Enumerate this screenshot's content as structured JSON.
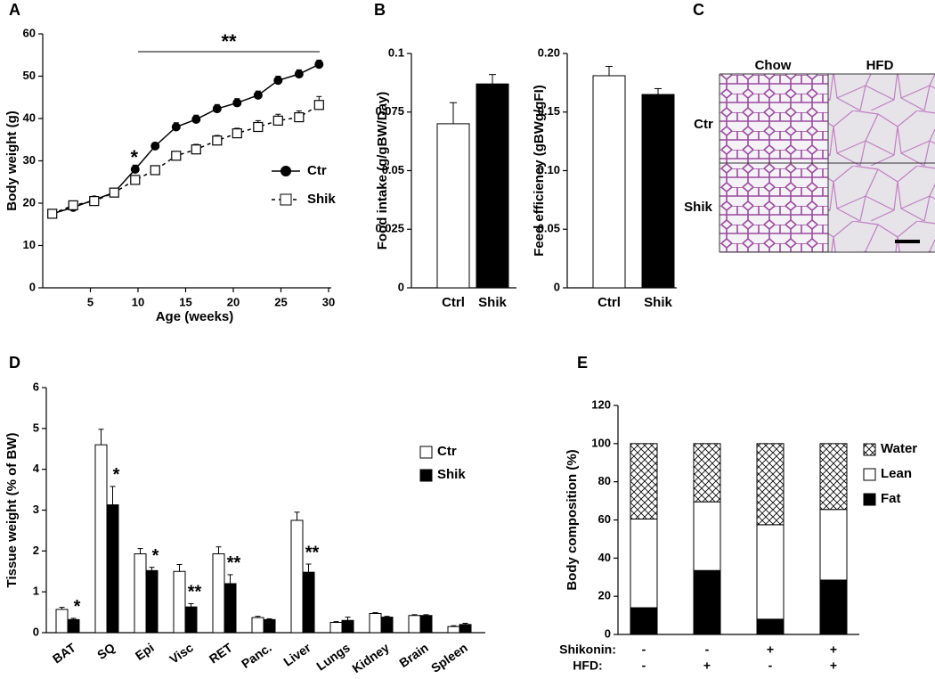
{
  "chart_data": [
    {
      "type": "line",
      "panel": "A",
      "xlabel": "Age (weeks)",
      "ylabel": "Body weight (g)",
      "xlim": [
        0,
        30
      ],
      "xticks": [
        5,
        10,
        15,
        20,
        25,
        30
      ],
      "ylim": [
        0,
        60
      ],
      "yticks": [
        0,
        10,
        20,
        30,
        40,
        50,
        60
      ],
      "x": [
        1,
        3.2,
        5.4,
        7.5,
        9.7,
        11.8,
        14,
        16.1,
        18.3,
        20.4,
        22.6,
        24.7,
        26.9,
        29
      ],
      "series": [
        {
          "name": "Ctr",
          "color": "#000000",
          "marker": "circle",
          "dash": false,
          "values": [
            17.5,
            19,
            20.8,
            22.5,
            28,
            33.5,
            38,
            39.8,
            42.3,
            43.7,
            45.5,
            49,
            50.5,
            52.8
          ],
          "errors": [
            0.8,
            0.8,
            0.8,
            0.8,
            1,
            0.8,
            1,
            1,
            1,
            1,
            1,
            1,
            1,
            1
          ]
        },
        {
          "name": "Shik",
          "color": "#000000",
          "marker": "square",
          "dash": true,
          "values": [
            17.5,
            19.5,
            20.5,
            22.5,
            25.5,
            27.8,
            31.2,
            32.7,
            34.8,
            36.5,
            38,
            39.5,
            40.3,
            43.2
          ],
          "errors": [
            0.8,
            1,
            1,
            0.8,
            1,
            1,
            1,
            1.2,
            1.2,
            1.2,
            1.5,
            1.5,
            1.5,
            2
          ]
        }
      ],
      "annotations": [
        "**",
        "*"
      ],
      "legend": true
    },
    {
      "type": "bar",
      "panel": "B",
      "ylabel": "Food intake (g/gBW/Day)",
      "categories": [
        "Ctrl",
        "Shik"
      ],
      "values": [
        0.07,
        0.087
      ],
      "errors": [
        0.009,
        0.004
      ],
      "colors": [
        "#ffffff",
        "#000000"
      ],
      "ylim": [
        0,
        0.1
      ],
      "yticks": [
        0,
        0.025,
        0.05,
        0.075,
        0.1
      ]
    },
    {
      "type": "bar",
      "ylabel": "Feed efficiency (gBWg/gFI)",
      "categories": [
        "Ctrl",
        "Shik"
      ],
      "values": [
        0.181,
        0.165
      ],
      "errors": [
        0.008,
        0.005
      ],
      "colors": [
        "#ffffff",
        "#000000"
      ],
      "ylim": [
        0,
        0.2
      ],
      "yticks": [
        0,
        0.05,
        {
          "value": 0.1,
          "label": "0.10"
        },
        0.15,
        {
          "value": 0.2,
          "label": "0.20"
        }
      ]
    },
    {
      "type": "bar",
      "panel": "D",
      "ylabel": "Tissue weight (% of BW)",
      "categories": [
        "BAT",
        "SQ",
        "Epi",
        "Visc",
        "RET",
        "Panc.",
        "Liver",
        "Lungs",
        "Kidney",
        "Brain",
        "Spleen"
      ],
      "series": [
        {
          "name": "Ctr",
          "color": "#ffffff",
          "values": [
            0.57,
            4.6,
            1.93,
            1.5,
            1.93,
            0.37,
            2.75,
            0.25,
            0.47,
            0.42,
            0.15
          ],
          "errors": [
            0.05,
            0.38,
            0.13,
            0.17,
            0.17,
            0.03,
            0.2,
            0.02,
            0.02,
            0.02,
            0.02
          ]
        },
        {
          "name": "Shik",
          "color": "#000000",
          "values": [
            0.32,
            3.13,
            1.52,
            0.63,
            1.2,
            0.32,
            1.48,
            0.3,
            0.38,
            0.42,
            0.2
          ],
          "errors": [
            0.03,
            0.45,
            0.08,
            0.08,
            0.22,
            0.02,
            0.2,
            0.08,
            0.02,
            0.02,
            0.03
          ],
          "significance": [
            "*",
            "*",
            "*",
            "**",
            "**",
            null,
            "**",
            null,
            null,
            null,
            null
          ]
        }
      ],
      "ylim": [
        0,
        6
      ],
      "yticks": [
        0,
        1,
        2,
        3,
        4,
        5,
        6
      ],
      "legend": true
    },
    {
      "type": "bar",
      "panel": "E",
      "ylabel": "Body composition (%)",
      "stacked": true,
      "categories": [
        null,
        null,
        null,
        null
      ],
      "series": [
        {
          "name": "Fat",
          "color": "#000000",
          "values": [
            14,
            33.5,
            8,
            28.5
          ],
          "errors": [
            1,
            0.5,
            0.5,
            1
          ],
          "significance": [
            null,
            null,
            "*",
            "*"
          ]
        },
        {
          "name": "Lean",
          "color": "#ffffff",
          "values": [
            46.5,
            36,
            49.5,
            37
          ]
        },
        {
          "name": "Water",
          "color": "#ffffff",
          "pattern": "hatch",
          "values": [
            39.5,
            30.5,
            42.5,
            34.5
          ]
        }
      ],
      "conditions": [
        {
          "name": "Shikonin:",
          "values": [
            "-",
            "-",
            "+",
            "+"
          ]
        },
        {
          "name": "HFD:",
          "values": [
            "-",
            "+",
            "-",
            "+"
          ]
        }
      ],
      "ylim": [
        0,
        120
      ],
      "yticks": [
        0,
        20,
        40,
        60,
        80,
        100,
        120
      ],
      "legend": true
    }
  ],
  "panel_c": {
    "panel": "C",
    "columns": [
      "Chow",
      "HFD"
    ],
    "rows": [
      "Ctr",
      "Shik"
    ]
  }
}
